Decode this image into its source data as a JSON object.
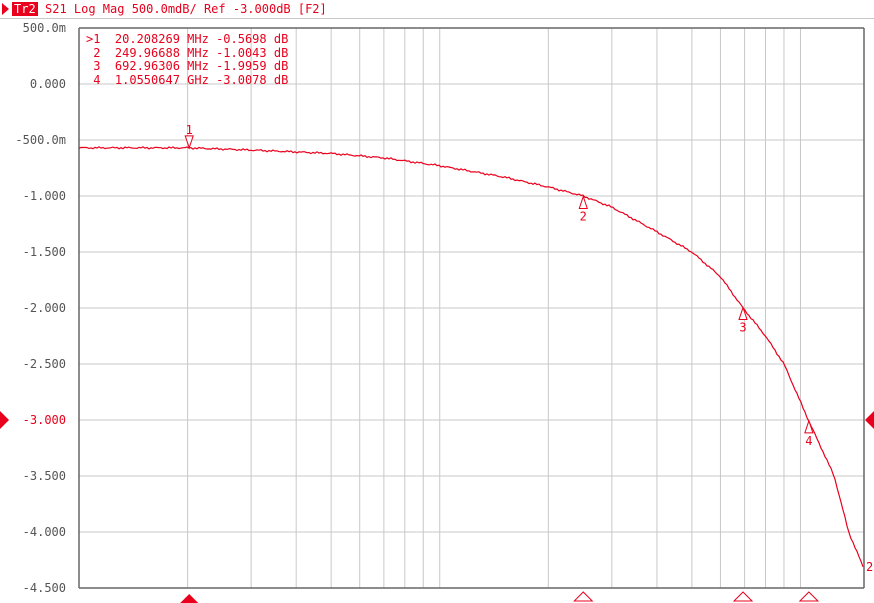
{
  "header": {
    "trace_badge": "Tr2",
    "description": "S21 Log Mag 500.0mdB/ Ref -3.000dB [F2]"
  },
  "marker_table": [
    {
      "label": ">1",
      "freq": "20.208269",
      "unit": "MHz",
      "value": "-0.5698",
      "value_unit": "dB"
    },
    {
      "label": " 2",
      "freq": "249.96688",
      "unit": "MHz",
      "value": "-1.0043",
      "value_unit": "dB"
    },
    {
      "label": " 3",
      "freq": "692.96306",
      "unit": "MHz",
      "value": "-1.9959",
      "value_unit": "dB"
    },
    {
      "label": " 4",
      "freq": "1.0550647",
      "unit": "GHz",
      "value": "-3.0078",
      "value_unit": "dB"
    }
  ],
  "colors": {
    "trace": "#e8001c",
    "grid": "#c8c8c8",
    "axis_text": "#555555"
  },
  "chart_data": {
    "type": "line",
    "xscale": "log",
    "xlim_mhz": [
      10,
      1500
    ],
    "ylim": [
      -4.5,
      0.5
    ],
    "y_ticks": [
      0.5,
      0,
      -0.5,
      -1,
      -1.5,
      -2,
      -2.5,
      -3,
      -3.5,
      -4,
      -4.5
    ],
    "y_tick_labels": [
      "500.0m",
      "0.000",
      "-500.0m",
      "-1.000",
      "-1.500",
      "-2.000",
      "-2.500",
      "-3.000",
      "-3.500",
      "-4.000",
      "-4.500"
    ],
    "reference_level": -3.0,
    "grid": true,
    "trace_number_label": "2",
    "series": [
      {
        "x_mhz": [
          10,
          20,
          30,
          50,
          70,
          100,
          150,
          200,
          250,
          300,
          400,
          500,
          600,
          693,
          800,
          900,
          1055,
          1240,
          1360,
          1500
        ],
        "y_db": [
          -0.57,
          -0.57,
          -0.59,
          -0.62,
          -0.66,
          -0.73,
          -0.83,
          -0.92,
          -1.0,
          -1.1,
          -1.32,
          -1.5,
          -1.72,
          -2.0,
          -2.25,
          -2.5,
          -3.01,
          -3.5,
          -4.0,
          -4.33
        ]
      }
    ],
    "markers": [
      {
        "id": "1",
        "x_mhz": 20.208269,
        "y_db": -0.5698,
        "active": true
      },
      {
        "id": "2",
        "x_mhz": 249.96688,
        "y_db": -1.0043,
        "active": false
      },
      {
        "id": "3",
        "x_mhz": 692.96306,
        "y_db": -1.9959,
        "active": false
      },
      {
        "id": "4",
        "x_mhz": 1055.0647,
        "y_db": -3.0078,
        "active": false
      }
    ]
  }
}
